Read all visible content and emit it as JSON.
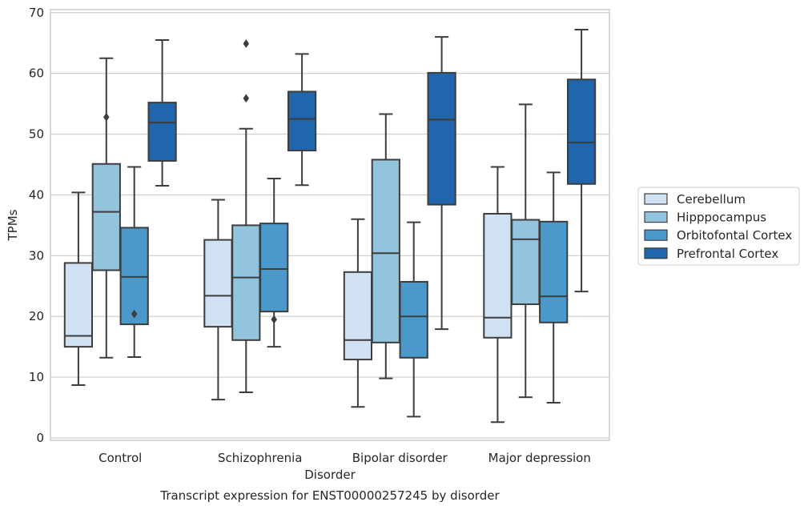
{
  "chart_data": {
    "type": "box",
    "title": "",
    "caption": "Transcript expression for ENST00000257245 by disorder",
    "xlabel": "Disorder",
    "ylabel": "TPMs",
    "ylim": [
      -0.4,
      70.5
    ],
    "yticks": [
      0,
      10,
      20,
      30,
      40,
      50,
      60,
      70
    ],
    "grid": "horizontal",
    "legend_position": "right",
    "categories": [
      "Control",
      "Schizophrenia",
      "Bipolar disorder",
      "Major depression"
    ],
    "series": [
      {
        "name": "Cerebellum",
        "color": "#cfe1f2",
        "boxes": [
          {
            "whislo": 8.7,
            "q1": 15.0,
            "med": 16.8,
            "q3": 28.8,
            "whishi": 40.4,
            "fliers": []
          },
          {
            "whislo": 6.3,
            "q1": 18.3,
            "med": 23.4,
            "q3": 32.6,
            "whishi": 39.2,
            "fliers": []
          },
          {
            "whislo": 5.1,
            "q1": 12.9,
            "med": 16.1,
            "q3": 27.3,
            "whishi": 36.0,
            "fliers": []
          },
          {
            "whislo": 2.6,
            "q1": 16.5,
            "med": 19.8,
            "q3": 36.9,
            "whishi": 44.6,
            "fliers": []
          }
        ]
      },
      {
        "name": "Hipppocampus",
        "color": "#93c4de",
        "boxes": [
          {
            "whislo": 13.2,
            "q1": 27.6,
            "med": 37.2,
            "q3": 45.1,
            "whishi": 62.5,
            "fliers": [
              52.8
            ]
          },
          {
            "whislo": 7.5,
            "q1": 16.1,
            "med": 26.4,
            "q3": 35.0,
            "whishi": 50.9,
            "fliers": [
              55.9,
              64.9
            ]
          },
          {
            "whislo": 9.8,
            "q1": 15.7,
            "med": 30.4,
            "q3": 45.8,
            "whishi": 53.3,
            "fliers": []
          },
          {
            "whislo": 6.7,
            "q1": 22.0,
            "med": 32.7,
            "q3": 35.9,
            "whishi": 54.9,
            "fliers": []
          }
        ]
      },
      {
        "name": "Orbitofontal Cortex",
        "color": "#4b98ca",
        "boxes": [
          {
            "whislo": 13.3,
            "q1": 18.7,
            "med": 26.5,
            "q3": 34.6,
            "whishi": 44.6,
            "fliers": [
              20.4
            ]
          },
          {
            "whislo": 15.0,
            "q1": 20.8,
            "med": 27.8,
            "q3": 35.3,
            "whishi": 42.7,
            "fliers": [
              19.5
            ]
          },
          {
            "whislo": 3.5,
            "q1": 13.2,
            "med": 20.0,
            "q3": 25.7,
            "whishi": 35.5,
            "fliers": []
          },
          {
            "whislo": 5.8,
            "q1": 19.0,
            "med": 23.3,
            "q3": 35.6,
            "whishi": 43.7,
            "fliers": []
          }
        ]
      },
      {
        "name": "Prefrontal Cortex",
        "color": "#2166ac",
        "boxes": [
          {
            "whislo": 41.5,
            "q1": 45.6,
            "med": 51.9,
            "q3": 55.2,
            "whishi": 65.5,
            "fliers": []
          },
          {
            "whislo": 41.6,
            "q1": 47.3,
            "med": 52.5,
            "q3": 57.0,
            "whishi": 63.2,
            "fliers": []
          },
          {
            "whislo": 17.9,
            "q1": 38.4,
            "med": 52.4,
            "q3": 60.1,
            "whishi": 66.0,
            "fliers": []
          },
          {
            "whislo": 24.1,
            "q1": 41.8,
            "med": 48.6,
            "q3": 59.0,
            "whishi": 67.2,
            "fliers": []
          }
        ]
      }
    ]
  }
}
